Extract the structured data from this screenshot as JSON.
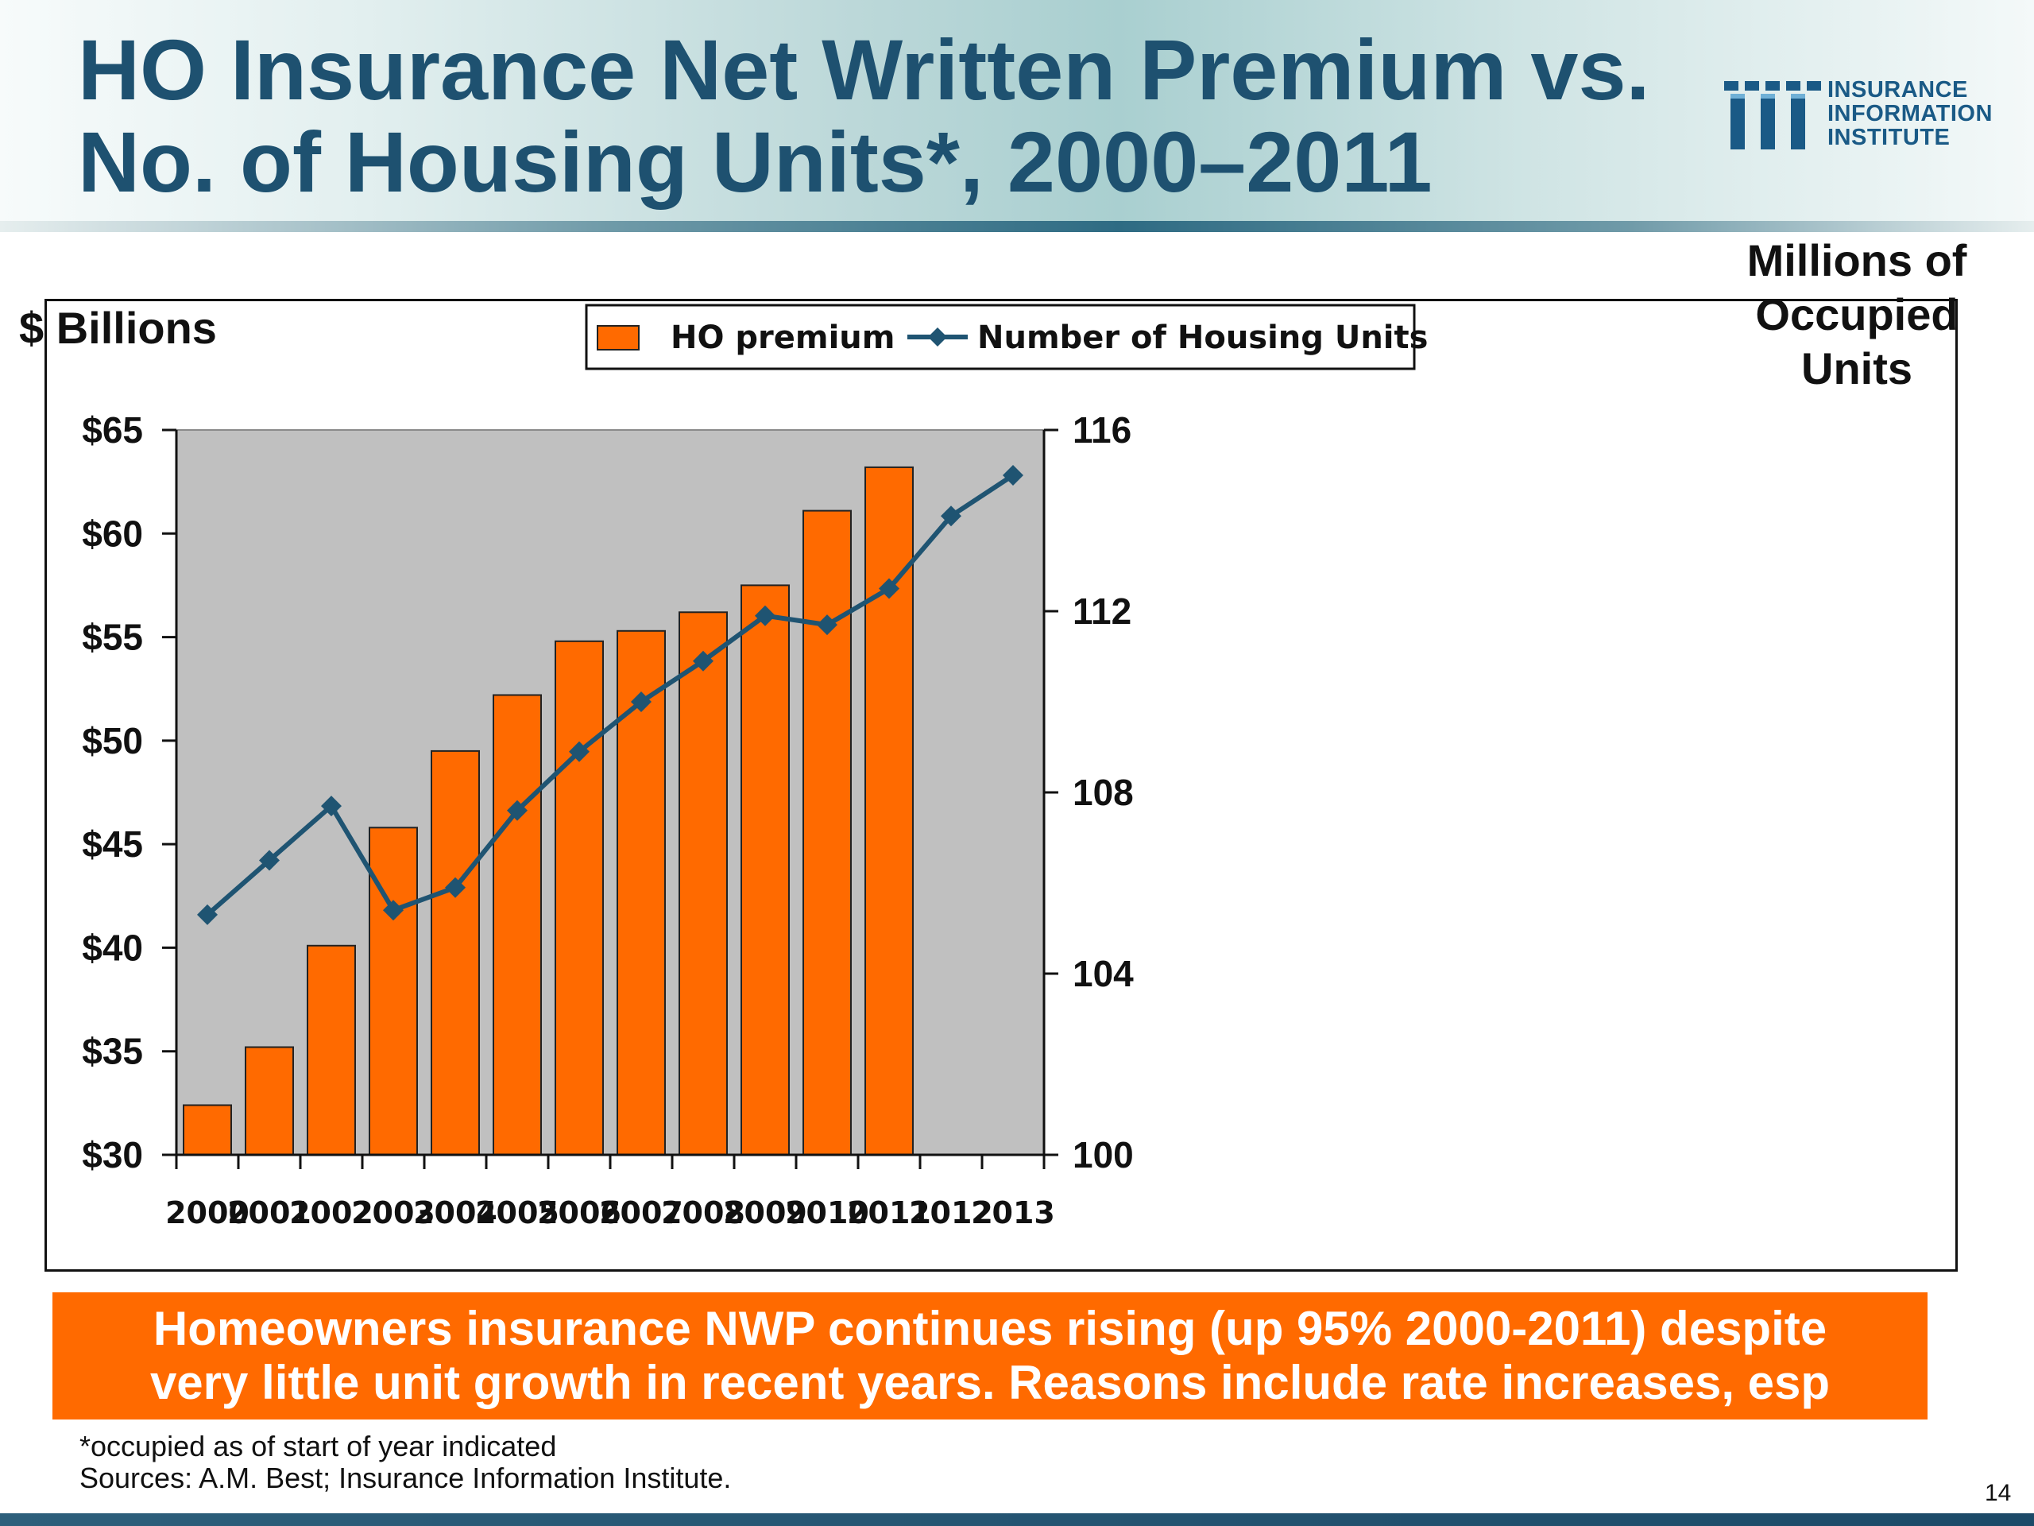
{
  "slide": {
    "title_line1": "HO Insurance Net Written Premium vs.",
    "title_line2": "No. of Housing Units*, 2000–2011",
    "logo": {
      "line1": "INSURANCE",
      "line2": "INFORMATION",
      "line3": "INSTITUTE",
      "icon": "iii-logo-icon",
      "color": "#1a5a86"
    },
    "callout_line1": "Homeowners insurance NWP continues rising (up 95% 2000-2011) despite",
    "callout_line2": "very little unit growth in recent years.  Reasons include rate increases, esp",
    "footnote": "*occupied as of start of year indicated",
    "sources": "Sources: A.M. Best; Insurance Information Institute.",
    "page_number": "14",
    "colors": {
      "title": "#1e5170",
      "accent": "#ff6a00",
      "bar": "#ff6a00",
      "line": "#1f5472",
      "plot_background": "#c0c0c0"
    }
  },
  "chart_data": {
    "type": "bar",
    "categories": [
      "2000",
      "2001",
      "2002",
      "2003",
      "2004",
      "2005",
      "2006",
      "2007",
      "2008",
      "2009",
      "2010",
      "2011",
      "2012",
      "2013"
    ],
    "series": [
      {
        "name": "HO premium",
        "type": "bar",
        "axis": "left",
        "values": [
          32.4,
          35.2,
          40.1,
          45.8,
          49.5,
          52.2,
          54.8,
          55.3,
          56.2,
          57.5,
          61.1,
          63.2,
          null,
          null
        ]
      },
      {
        "name": "Number of Housing Units",
        "type": "line",
        "axis": "right",
        "values": [
          105.3,
          106.5,
          107.7,
          105.4,
          105.9,
          107.6,
          108.9,
          110.0,
          110.9,
          111.9,
          111.7,
          112.5,
          114.1,
          115.0
        ]
      }
    ],
    "left_axis": {
      "title": "$ Billions",
      "ylim": [
        30,
        65
      ],
      "ticks": [
        30,
        35,
        40,
        45,
        50,
        55,
        60,
        65
      ],
      "tick_labels": [
        "$30",
        "$35",
        "$40",
        "$45",
        "$50",
        "$55",
        "$60",
        "$65"
      ]
    },
    "right_axis": {
      "title_line1": "Millions of",
      "title_line2": "Occupied",
      "title_line3": "Units",
      "ylim": [
        100,
        116
      ],
      "ticks": [
        100,
        104,
        108,
        112,
        116
      ],
      "tick_labels": [
        "100",
        "104",
        "108",
        "112",
        "116"
      ]
    },
    "legend": {
      "position": "top-center",
      "items": [
        "HO premium",
        "Number of Housing Units"
      ]
    },
    "grid": false
  }
}
